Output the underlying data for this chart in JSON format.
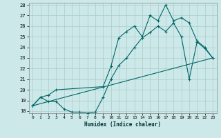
{
  "title": "",
  "xlabel": "Humidex (Indice chaleur)",
  "bg_color": "#cce8e8",
  "grid_color": "#aacccc",
  "line_color": "#006666",
  "xlim": [
    -0.5,
    23.5
  ],
  "ylim": [
    17.8,
    28.2
  ],
  "xticks": [
    0,
    1,
    2,
    3,
    4,
    5,
    6,
    7,
    8,
    9,
    10,
    11,
    12,
    13,
    14,
    15,
    16,
    17,
    18,
    19,
    20,
    21,
    22,
    23
  ],
  "yticks": [
    18,
    19,
    20,
    21,
    22,
    23,
    24,
    25,
    26,
    27,
    28
  ],
  "line1_x": [
    0,
    1,
    2,
    3,
    4,
    5,
    6,
    7,
    8,
    9,
    10,
    11,
    12,
    13,
    14,
    15,
    16,
    17,
    18,
    19,
    20,
    21,
    22,
    23
  ],
  "line1_y": [
    18.5,
    19.3,
    18.9,
    18.9,
    18.2,
    17.9,
    17.9,
    17.8,
    17.9,
    19.3,
    21.0,
    22.3,
    23.0,
    24.0,
    24.9,
    25.4,
    26.0,
    25.5,
    26.3,
    25.0,
    21.0,
    24.5,
    23.9,
    23.0
  ],
  "line2_x": [
    0,
    1,
    2,
    3,
    9,
    10,
    11,
    12,
    13,
    14,
    15,
    16,
    17,
    18,
    19,
    20,
    21,
    22,
    23
  ],
  "line2_y": [
    18.5,
    19.3,
    19.5,
    20.0,
    20.3,
    22.2,
    24.9,
    25.5,
    26.0,
    25.0,
    27.0,
    26.5,
    28.0,
    26.5,
    26.8,
    26.3,
    24.6,
    24.0,
    23.0
  ],
  "line3_x": [
    0,
    23
  ],
  "line3_y": [
    18.5,
    23.0
  ]
}
